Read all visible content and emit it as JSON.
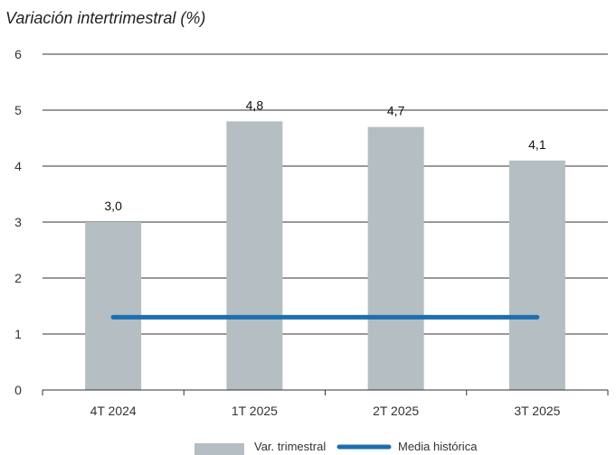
{
  "chart_data": {
    "type": "bar",
    "subtitle": "Variación intertrimestral (%)",
    "categories": [
      "4T 2024",
      "1T 2025",
      "2T 2025",
      "3T 2025"
    ],
    "series": [
      {
        "name": "Var. trimestral",
        "type": "bar",
        "values": [
          3.0,
          4.8,
          4.7,
          4.1
        ],
        "value_labels": [
          "3,0",
          "4,8",
          "4,7",
          "4,1"
        ],
        "color": "#b4bec3"
      },
      {
        "name": "Media histórica",
        "type": "line",
        "values": [
          1.3,
          1.3,
          1.3,
          1.3
        ],
        "color": "#1c6fb0"
      }
    ],
    "ylim": [
      0,
      6
    ],
    "yticks": [
      "0",
      "1",
      "2",
      "3",
      "4",
      "5",
      "6"
    ],
    "grid": true,
    "legend": "bottom-center"
  }
}
